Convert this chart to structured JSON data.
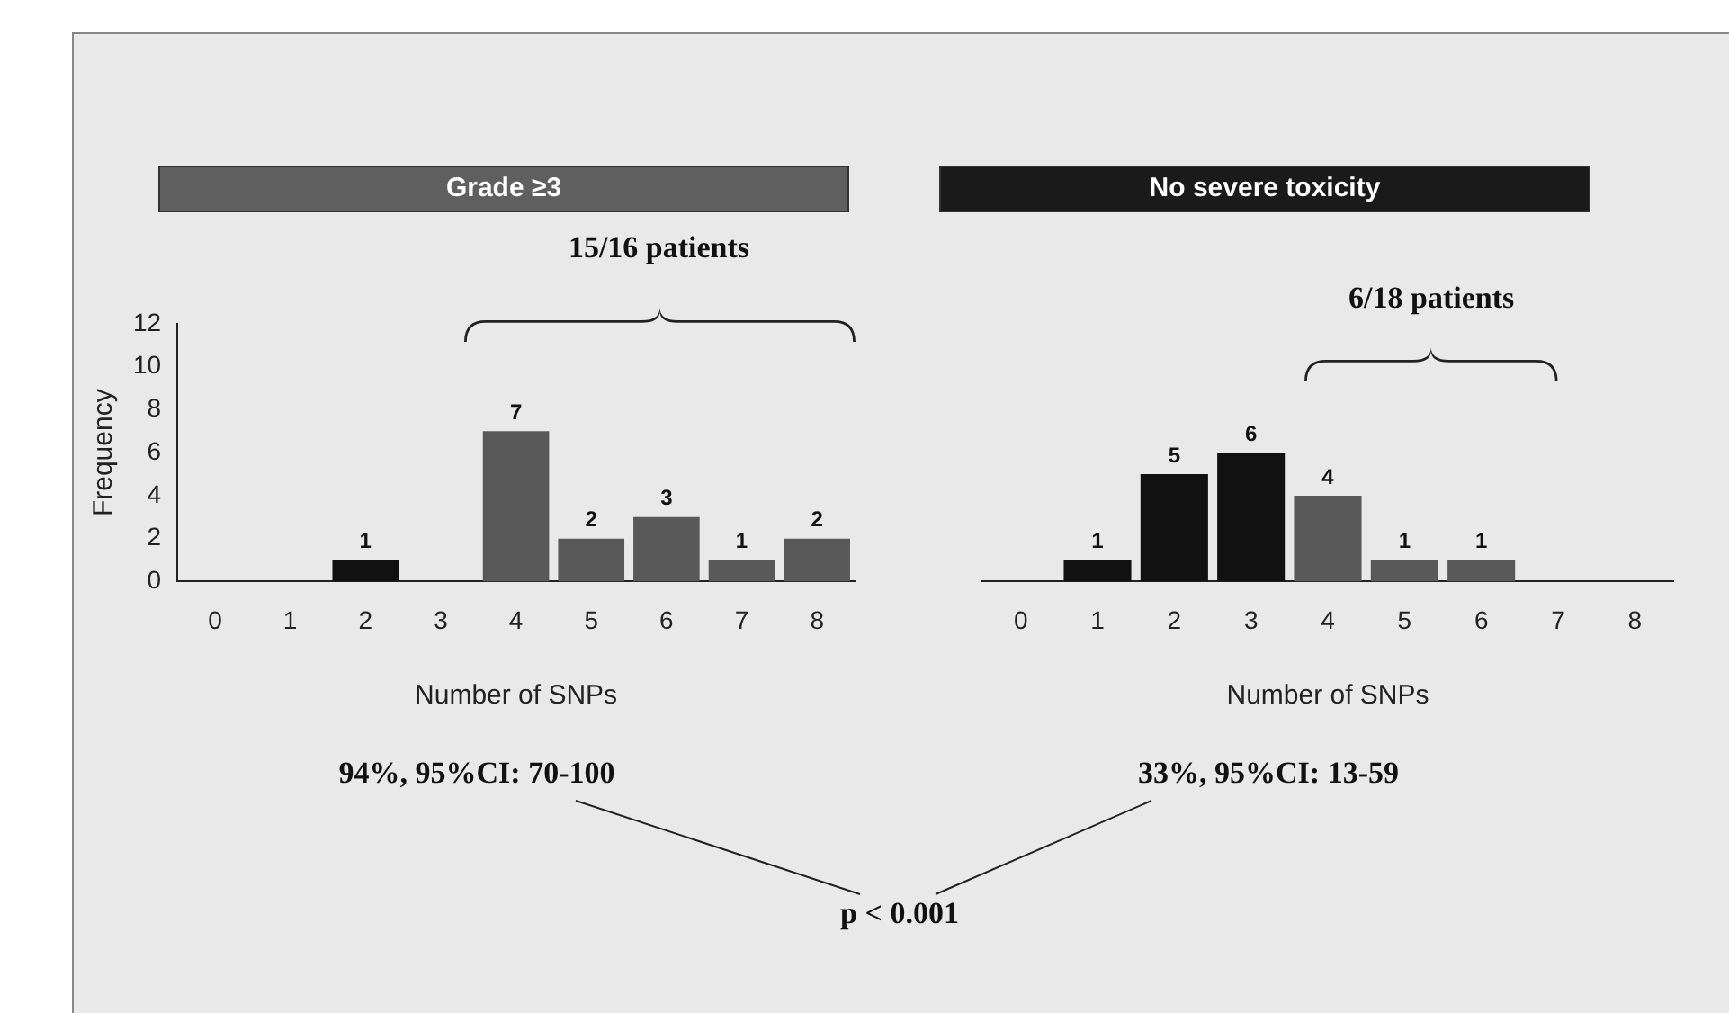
{
  "chart_data": [
    {
      "type": "bar",
      "title": "Grade ≥3",
      "xlabel": "Number of SNPs",
      "ylabel": "Frequency",
      "categories": [
        "0",
        "1",
        "2",
        "3",
        "4",
        "5",
        "6",
        "7",
        "8"
      ],
      "values": [
        null,
        null,
        1,
        null,
        7,
        2,
        3,
        1,
        2
      ],
      "colors": [
        "#595959",
        "#595959",
        "#111111",
        "#595959",
        "#595959",
        "#595959",
        "#595959",
        "#595959",
        "#595959"
      ],
      "ylim": [
        0,
        12
      ],
      "yticks": [
        0,
        2,
        4,
        6,
        8,
        10,
        12
      ],
      "data_labels": true,
      "annotations": [
        "15/16 patients",
        "94%, 95%CI: 70-100",
        "p < 0.001"
      ]
    },
    {
      "type": "bar",
      "title": "No severe toxicity",
      "xlabel": "Number of SNPs",
      "categories": [
        "0",
        "1",
        "2",
        "3",
        "4",
        "5",
        "6",
        "7",
        "8"
      ],
      "values": [
        null,
        1,
        5,
        6,
        4,
        1,
        1,
        null,
        null
      ],
      "colors": [
        "#111111",
        "#111111",
        "#111111",
        "#111111",
        "#595959",
        "#595959",
        "#595959",
        "#595959",
        "#595959"
      ],
      "ylim": [
        0,
        12
      ],
      "yticks": [
        0,
        2,
        4,
        6,
        8,
        10,
        12
      ],
      "tick_labels": "x",
      "data_labels": true,
      "annotations": [
        "6/18 patients",
        "33%, 95%CI: 13-59"
      ]
    }
  ]
}
